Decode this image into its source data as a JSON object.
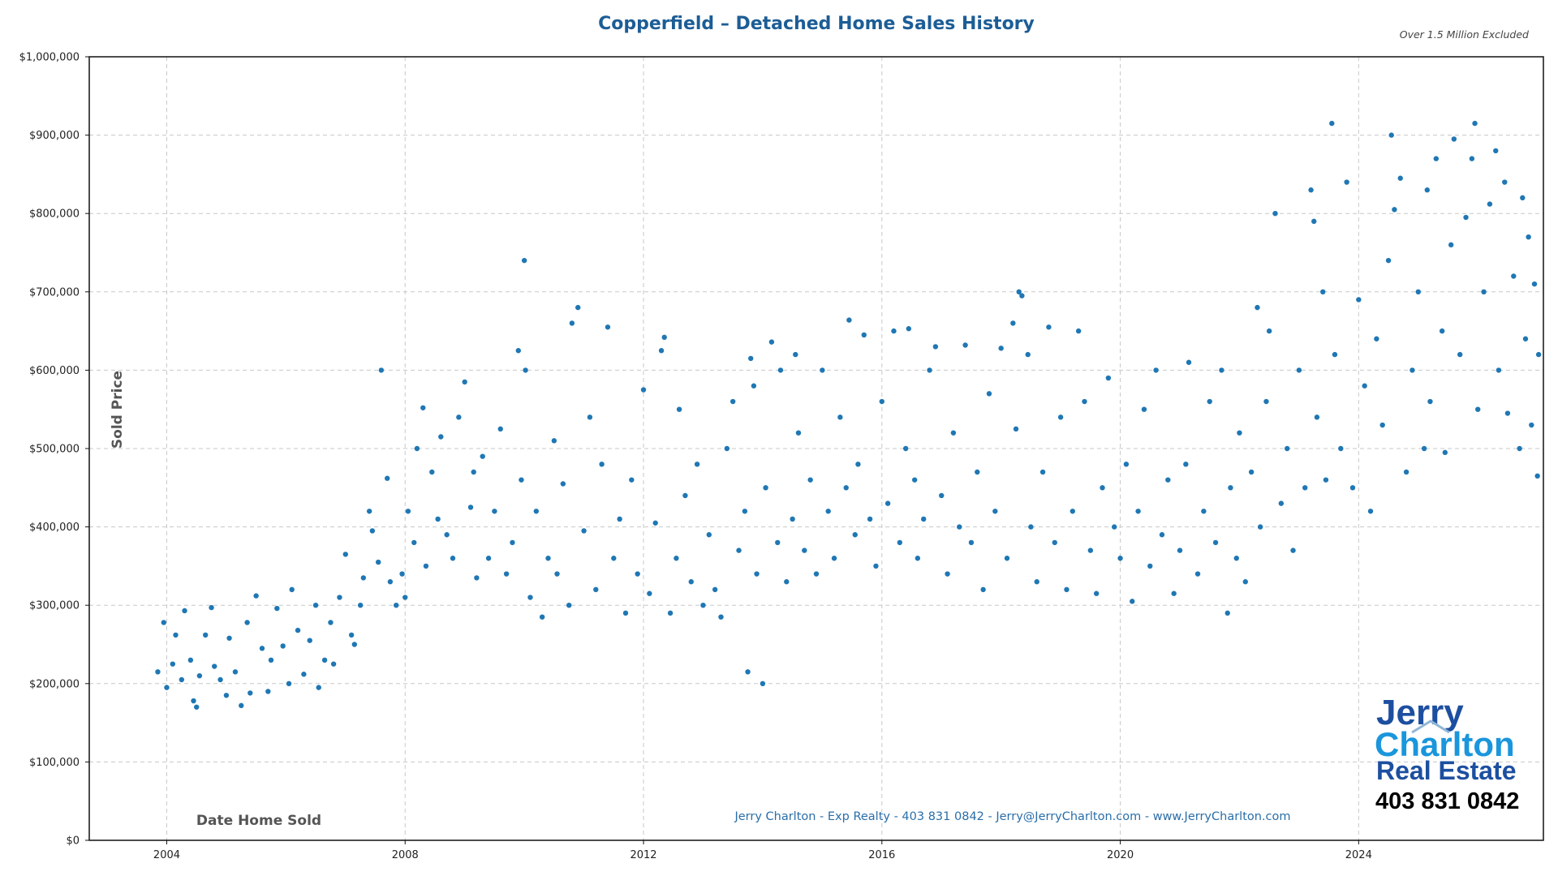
{
  "chart_data": {
    "type": "scatter",
    "title": "Copperfield – Detached Home Sales History",
    "note": "Over 1.5 Million Excluded",
    "xlabel": "Date Home Sold",
    "ylabel": "Sold Price",
    "xlim": [
      2002.7,
      2027.1
    ],
    "ylim": [
      0,
      1000000
    ],
    "xticks": [
      2004,
      2008,
      2012,
      2016,
      2020,
      2024
    ],
    "xtick_labels": [
      "2004",
      "2008",
      "2012",
      "2016",
      "2020",
      "2024"
    ],
    "yticks": [
      0,
      100000,
      200000,
      300000,
      400000,
      500000,
      600000,
      700000,
      800000,
      900000,
      1000000
    ],
    "ytick_labels": [
      "$0",
      "$100,000",
      "$200,000",
      "$300,000",
      "$400,000",
      "$500,000",
      "$600,000",
      "$700,000",
      "$800,000",
      "$900,000",
      "$1,000,000"
    ],
    "grid": true,
    "point_color": "#1f77b4",
    "footer": "Jerry Charlton - Exp Realty - 403 831 0842 - Jerry@JerryCharlton.com - www.JerryCharlton.com",
    "points": [
      [
        2003.85,
        215000
      ],
      [
        2003.95,
        278000
      ],
      [
        2004.0,
        195000
      ],
      [
        2004.1,
        225000
      ],
      [
        2004.15,
        262000
      ],
      [
        2004.25,
        205000
      ],
      [
        2004.3,
        293000
      ],
      [
        2004.4,
        230000
      ],
      [
        2004.45,
        178000
      ],
      [
        2004.5,
        170000
      ],
      [
        2004.55,
        210000
      ],
      [
        2004.65,
        262000
      ],
      [
        2004.75,
        297000
      ],
      [
        2004.8,
        222000
      ],
      [
        2004.9,
        205000
      ],
      [
        2005.0,
        185000
      ],
      [
        2005.05,
        258000
      ],
      [
        2005.15,
        215000
      ],
      [
        2005.25,
        172000
      ],
      [
        2005.35,
        278000
      ],
      [
        2005.4,
        188000
      ],
      [
        2005.5,
        312000
      ],
      [
        2005.6,
        245000
      ],
      [
        2005.7,
        190000
      ],
      [
        2005.75,
        230000
      ],
      [
        2005.85,
        296000
      ],
      [
        2005.95,
        248000
      ],
      [
        2006.05,
        200000
      ],
      [
        2006.1,
        320000
      ],
      [
        2006.2,
        268000
      ],
      [
        2006.3,
        212000
      ],
      [
        2006.4,
        255000
      ],
      [
        2006.5,
        300000
      ],
      [
        2006.55,
        195000
      ],
      [
        2006.65,
        230000
      ],
      [
        2006.75,
        278000
      ],
      [
        2006.8,
        225000
      ],
      [
        2006.9,
        310000
      ],
      [
        2007.0,
        365000
      ],
      [
        2007.1,
        262000
      ],
      [
        2007.15,
        250000
      ],
      [
        2007.25,
        300000
      ],
      [
        2007.3,
        335000
      ],
      [
        2007.4,
        420000
      ],
      [
        2007.45,
        395000
      ],
      [
        2007.55,
        355000
      ],
      [
        2007.6,
        600000
      ],
      [
        2007.7,
        462000
      ],
      [
        2007.75,
        330000
      ],
      [
        2007.85,
        300000
      ],
      [
        2007.95,
        340000
      ],
      [
        2008.0,
        310000
      ],
      [
        2008.05,
        420000
      ],
      [
        2008.15,
        380000
      ],
      [
        2008.2,
        500000
      ],
      [
        2008.3,
        552000
      ],
      [
        2008.35,
        350000
      ],
      [
        2008.45,
        470000
      ],
      [
        2008.55,
        410000
      ],
      [
        2008.6,
        515000
      ],
      [
        2008.7,
        390000
      ],
      [
        2008.8,
        360000
      ],
      [
        2008.9,
        540000
      ],
      [
        2009.0,
        585000
      ],
      [
        2009.1,
        425000
      ],
      [
        2009.15,
        470000
      ],
      [
        2009.2,
        335000
      ],
      [
        2009.3,
        490000
      ],
      [
        2009.4,
        360000
      ],
      [
        2009.5,
        420000
      ],
      [
        2009.6,
        525000
      ],
      [
        2009.7,
        340000
      ],
      [
        2009.8,
        380000
      ],
      [
        2009.9,
        625000
      ],
      [
        2009.95,
        460000
      ],
      [
        2010.0,
        740000
      ],
      [
        2010.02,
        600000
      ],
      [
        2010.1,
        310000
      ],
      [
        2010.2,
        420000
      ],
      [
        2010.3,
        285000
      ],
      [
        2010.4,
        360000
      ],
      [
        2010.5,
        510000
      ],
      [
        2010.55,
        340000
      ],
      [
        2010.65,
        455000
      ],
      [
        2010.75,
        300000
      ],
      [
        2010.8,
        660000
      ],
      [
        2010.9,
        680000
      ],
      [
        2011.0,
        395000
      ],
      [
        2011.1,
        540000
      ],
      [
        2011.2,
        320000
      ],
      [
        2011.3,
        480000
      ],
      [
        2011.4,
        655000
      ],
      [
        2011.5,
        360000
      ],
      [
        2011.6,
        410000
      ],
      [
        2011.7,
        290000
      ],
      [
        2011.8,
        460000
      ],
      [
        2011.9,
        340000
      ],
      [
        2012.0,
        575000
      ],
      [
        2012.1,
        315000
      ],
      [
        2012.2,
        405000
      ],
      [
        2012.3,
        625000
      ],
      [
        2012.35,
        642000
      ],
      [
        2012.45,
        290000
      ],
      [
        2012.55,
        360000
      ],
      [
        2012.6,
        550000
      ],
      [
        2012.7,
        440000
      ],
      [
        2012.8,
        330000
      ],
      [
        2012.9,
        480000
      ],
      [
        2013.0,
        300000
      ],
      [
        2013.1,
        390000
      ],
      [
        2013.2,
        320000
      ],
      [
        2013.3,
        285000
      ],
      [
        2013.4,
        500000
      ],
      [
        2013.5,
        560000
      ],
      [
        2013.6,
        370000
      ],
      [
        2013.7,
        420000
      ],
      [
        2013.75,
        215000
      ],
      [
        2013.8,
        615000
      ],
      [
        2013.85,
        580000
      ],
      [
        2013.9,
        340000
      ],
      [
        2014.0,
        200000
      ],
      [
        2014.05,
        450000
      ],
      [
        2014.15,
        636000
      ],
      [
        2014.25,
        380000
      ],
      [
        2014.3,
        600000
      ],
      [
        2014.4,
        330000
      ],
      [
        2014.5,
        410000
      ],
      [
        2014.55,
        620000
      ],
      [
        2014.6,
        520000
      ],
      [
        2014.7,
        370000
      ],
      [
        2014.8,
        460000
      ],
      [
        2014.9,
        340000
      ],
      [
        2015.0,
        600000
      ],
      [
        2015.1,
        420000
      ],
      [
        2015.2,
        360000
      ],
      [
        2015.3,
        540000
      ],
      [
        2015.4,
        450000
      ],
      [
        2015.45,
        664000
      ],
      [
        2015.55,
        390000
      ],
      [
        2015.6,
        480000
      ],
      [
        2015.7,
        645000
      ],
      [
        2015.8,
        410000
      ],
      [
        2015.9,
        350000
      ],
      [
        2016.0,
        560000
      ],
      [
        2016.1,
        430000
      ],
      [
        2016.2,
        650000
      ],
      [
        2016.3,
        380000
      ],
      [
        2016.4,
        500000
      ],
      [
        2016.45,
        653000
      ],
      [
        2016.55,
        460000
      ],
      [
        2016.6,
        360000
      ],
      [
        2016.7,
        410000
      ],
      [
        2016.8,
        600000
      ],
      [
        2016.9,
        630000
      ],
      [
        2017.0,
        440000
      ],
      [
        2017.1,
        340000
      ],
      [
        2017.2,
        520000
      ],
      [
        2017.3,
        400000
      ],
      [
        2017.4,
        632000
      ],
      [
        2017.5,
        380000
      ],
      [
        2017.6,
        470000
      ],
      [
        2017.7,
        320000
      ],
      [
        2017.8,
        570000
      ],
      [
        2017.9,
        420000
      ],
      [
        2018.0,
        628000
      ],
      [
        2018.1,
        360000
      ],
      [
        2018.2,
        660000
      ],
      [
        2018.25,
        525000
      ],
      [
        2018.3,
        700000
      ],
      [
        2018.35,
        695000
      ],
      [
        2018.45,
        620000
      ],
      [
        2018.5,
        400000
      ],
      [
        2018.6,
        330000
      ],
      [
        2018.7,
        470000
      ],
      [
        2018.8,
        655000
      ],
      [
        2018.9,
        380000
      ],
      [
        2019.0,
        540000
      ],
      [
        2019.1,
        320000
      ],
      [
        2019.2,
        420000
      ],
      [
        2019.3,
        650000
      ],
      [
        2019.4,
        560000
      ],
      [
        2019.5,
        370000
      ],
      [
        2019.6,
        315000
      ],
      [
        2019.7,
        450000
      ],
      [
        2019.8,
        590000
      ],
      [
        2019.9,
        400000
      ],
      [
        2020.0,
        360000
      ],
      [
        2020.1,
        480000
      ],
      [
        2020.2,
        305000
      ],
      [
        2020.3,
        420000
      ],
      [
        2020.4,
        550000
      ],
      [
        2020.5,
        350000
      ],
      [
        2020.6,
        600000
      ],
      [
        2020.7,
        390000
      ],
      [
        2020.8,
        460000
      ],
      [
        2020.9,
        315000
      ],
      [
        2021.0,
        370000
      ],
      [
        2021.1,
        480000
      ],
      [
        2021.15,
        610000
      ],
      [
        2021.3,
        340000
      ],
      [
        2021.4,
        420000
      ],
      [
        2021.5,
        560000
      ],
      [
        2021.6,
        380000
      ],
      [
        2021.7,
        600000
      ],
      [
        2021.8,
        290000
      ],
      [
        2021.85,
        450000
      ],
      [
        2021.95,
        360000
      ],
      [
        2022.0,
        520000
      ],
      [
        2022.1,
        330000
      ],
      [
        2022.2,
        470000
      ],
      [
        2022.3,
        680000
      ],
      [
        2022.35,
        400000
      ],
      [
        2022.45,
        560000
      ],
      [
        2022.5,
        650000
      ],
      [
        2022.6,
        800000
      ],
      [
        2022.7,
        430000
      ],
      [
        2022.8,
        500000
      ],
      [
        2022.9,
        370000
      ],
      [
        2023.0,
        600000
      ],
      [
        2023.1,
        450000
      ],
      [
        2023.2,
        830000
      ],
      [
        2023.25,
        790000
      ],
      [
        2023.3,
        540000
      ],
      [
        2023.4,
        700000
      ],
      [
        2023.45,
        460000
      ],
      [
        2023.55,
        915000
      ],
      [
        2023.6,
        620000
      ],
      [
        2023.7,
        500000
      ],
      [
        2023.8,
        840000
      ],
      [
        2023.9,
        450000
      ],
      [
        2024.0,
        690000
      ],
      [
        2024.1,
        580000
      ],
      [
        2024.2,
        420000
      ],
      [
        2024.3,
        640000
      ],
      [
        2024.4,
        530000
      ],
      [
        2024.5,
        740000
      ],
      [
        2024.55,
        900000
      ],
      [
        2024.6,
        805000
      ],
      [
        2024.7,
        845000
      ],
      [
        2024.8,
        470000
      ],
      [
        2024.9,
        600000
      ],
      [
        2025.0,
        700000
      ],
      [
        2025.1,
        500000
      ],
      [
        2025.15,
        830000
      ],
      [
        2025.2,
        560000
      ],
      [
        2025.3,
        870000
      ],
      [
        2025.4,
        650000
      ],
      [
        2025.45,
        495000
      ],
      [
        2025.55,
        760000
      ],
      [
        2025.6,
        895000
      ],
      [
        2025.7,
        620000
      ],
      [
        2025.8,
        795000
      ],
      [
        2025.9,
        870000
      ],
      [
        2025.95,
        915000
      ],
      [
        2026.0,
        550000
      ],
      [
        2026.1,
        700000
      ],
      [
        2026.2,
        812000
      ],
      [
        2026.3,
        880000
      ],
      [
        2026.35,
        600000
      ],
      [
        2026.45,
        840000
      ],
      [
        2026.5,
        545000
      ],
      [
        2026.6,
        720000
      ],
      [
        2026.7,
        500000
      ],
      [
        2026.75,
        820000
      ],
      [
        2026.8,
        640000
      ],
      [
        2026.85,
        770000
      ],
      [
        2026.9,
        530000
      ],
      [
        2026.95,
        710000
      ],
      [
        2027.0,
        465000
      ],
      [
        2027.02,
        620000
      ]
    ]
  },
  "logo": {
    "line1": "Jerry",
    "line2": "Charlton",
    "line3": "Real Estate",
    "phone": "403 831 0842"
  }
}
